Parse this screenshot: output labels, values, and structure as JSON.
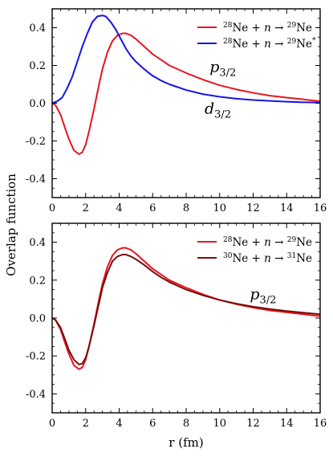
{
  "figure": {
    "ylabel": "Overlap function",
    "xlabel": "r (fm)"
  },
  "chart_data": [
    {
      "type": "line",
      "xlim": [
        0,
        16
      ],
      "ylim": [
        -0.5,
        0.5
      ],
      "xticks": [
        0,
        2,
        4,
        6,
        8,
        10,
        12,
        14,
        16
      ],
      "xtick_labels": [
        "0",
        "2",
        "4",
        "6",
        "8",
        "10",
        "12",
        "14",
        "16"
      ],
      "yticks": [
        -0.4,
        -0.2,
        0.0,
        0.2,
        0.4
      ],
      "ytick_labels": [
        "-0.4",
        "-0.2",
        "0.0",
        "0.2",
        "0.4"
      ],
      "legend_position": "top-right",
      "series": [
        {
          "name": "²⁸Ne + n → ²⁹Ne",
          "legend": {
            "a1": "28",
            "t1": "Ne + ",
            "n": "n",
            "arrow": " → ",
            "a2": "29",
            "t2": "Ne",
            "star": ""
          },
          "color": "#e8141e",
          "x": [
            0,
            0.2,
            0.5,
            0.8,
            1.0,
            1.3,
            1.6,
            1.8,
            2.0,
            2.2,
            2.5,
            2.8,
            3.0,
            3.3,
            3.6,
            3.9,
            4.2,
            4.4,
            4.7,
            5.0,
            5.5,
            6.0,
            6.5,
            7.0,
            8.0,
            9.0,
            10.0,
            11.0,
            12.0,
            13.0,
            14.0,
            15.0,
            16.0
          ],
          "y": [
            0.0,
            -0.01,
            -0.06,
            -0.14,
            -0.19,
            -0.25,
            -0.27,
            -0.26,
            -0.22,
            -0.15,
            -0.03,
            0.1,
            0.18,
            0.27,
            0.33,
            0.36,
            0.37,
            0.37,
            0.36,
            0.34,
            0.3,
            0.26,
            0.23,
            0.2,
            0.16,
            0.125,
            0.095,
            0.073,
            0.055,
            0.04,
            0.03,
            0.02,
            0.01
          ]
        },
        {
          "name": "²⁸Ne + n → ²⁹Ne*",
          "legend": {
            "a1": "28",
            "t1": "Ne + ",
            "n": "n",
            "arrow": " → ",
            "a2": "29",
            "t2": "Ne",
            "star": "*"
          },
          "color": "#1414e6",
          "x": [
            0,
            0.3,
            0.6,
            0.9,
            1.2,
            1.5,
            1.8,
            2.1,
            2.4,
            2.7,
            3.0,
            3.2,
            3.5,
            3.8,
            4.1,
            4.4,
            4.7,
            5.0,
            5.5,
            6.0,
            6.5,
            7.0,
            8.0,
            9.0,
            10.0,
            11.0,
            12.0,
            13.0,
            14.0,
            15.0,
            16.0
          ],
          "y": [
            0.0,
            0.01,
            0.03,
            0.08,
            0.14,
            0.22,
            0.3,
            0.37,
            0.43,
            0.46,
            0.465,
            0.46,
            0.43,
            0.39,
            0.34,
            0.29,
            0.25,
            0.22,
            0.18,
            0.145,
            0.12,
            0.1,
            0.07,
            0.048,
            0.034,
            0.024,
            0.017,
            0.012,
            0.008,
            0.005,
            0.003
          ]
        }
      ],
      "annotations": [
        {
          "main": "p",
          "sub": "3/2",
          "x": 9.4,
          "y": 0.165
        },
        {
          "main": "d",
          "sub": "3/2",
          "x": 9.1,
          "y": -0.055
        }
      ]
    },
    {
      "type": "line",
      "xlim": [
        0,
        16
      ],
      "ylim": [
        -0.5,
        0.5
      ],
      "xticks": [
        0,
        2,
        4,
        6,
        8,
        10,
        12,
        14,
        16
      ],
      "xtick_labels": [
        "0",
        "2",
        "4",
        "6",
        "8",
        "10",
        "12",
        "14",
        "16"
      ],
      "yticks": [
        -0.4,
        -0.2,
        0.0,
        0.2,
        0.4
      ],
      "ytick_labels": [
        "-0.4",
        "-0.2",
        "0.0",
        "0.2",
        "0.4"
      ],
      "legend_position": "top-right",
      "series": [
        {
          "name": "²⁸Ne + n → ²⁹Ne",
          "legend": {
            "a1": "28",
            "t1": "Ne + ",
            "n": "n",
            "arrow": " → ",
            "a2": "29",
            "t2": "Ne",
            "star": ""
          },
          "color": "#e8141e",
          "x": [
            0,
            0.2,
            0.5,
            0.8,
            1.0,
            1.3,
            1.6,
            1.8,
            2.0,
            2.2,
            2.5,
            2.8,
            3.0,
            3.3,
            3.6,
            3.9,
            4.2,
            4.4,
            4.7,
            5.0,
            5.5,
            6.0,
            6.5,
            7.0,
            8.0,
            9.0,
            10.0,
            11.0,
            12.0,
            13.0,
            14.0,
            15.0,
            16.0
          ],
          "y": [
            0.0,
            -0.01,
            -0.06,
            -0.14,
            -0.19,
            -0.25,
            -0.27,
            -0.26,
            -0.22,
            -0.15,
            -0.03,
            0.1,
            0.18,
            0.27,
            0.33,
            0.36,
            0.37,
            0.37,
            0.36,
            0.34,
            0.3,
            0.26,
            0.23,
            0.2,
            0.16,
            0.125,
            0.095,
            0.073,
            0.055,
            0.04,
            0.03,
            0.02,
            0.01
          ]
        },
        {
          "name": "³⁰Ne + n → ³¹Ne",
          "legend": {
            "a1": "30",
            "t1": "Ne + ",
            "n": "n",
            "arrow": " → ",
            "a2": "31",
            "t2": "Ne",
            "star": ""
          },
          "color": "#7a0a0a",
          "x": [
            0,
            0.2,
            0.5,
            0.8,
            1.0,
            1.3,
            1.6,
            1.8,
            2.0,
            2.2,
            2.5,
            2.8,
            3.0,
            3.3,
            3.6,
            3.9,
            4.2,
            4.4,
            4.7,
            5.0,
            5.5,
            6.0,
            6.5,
            7.0,
            8.0,
            9.0,
            10.0,
            11.0,
            12.0,
            13.0,
            14.0,
            15.0,
            16.0
          ],
          "y": [
            0.0,
            -0.01,
            -0.05,
            -0.12,
            -0.17,
            -0.22,
            -0.245,
            -0.24,
            -0.21,
            -0.15,
            -0.04,
            0.08,
            0.16,
            0.24,
            0.3,
            0.325,
            0.335,
            0.335,
            0.325,
            0.31,
            0.28,
            0.245,
            0.215,
            0.19,
            0.15,
            0.12,
            0.095,
            0.076,
            0.06,
            0.047,
            0.037,
            0.028,
            0.02
          ]
        }
      ],
      "annotations": [
        {
          "main": "p",
          "sub": "3/2",
          "x": 11.8,
          "y": 0.1
        }
      ]
    }
  ]
}
